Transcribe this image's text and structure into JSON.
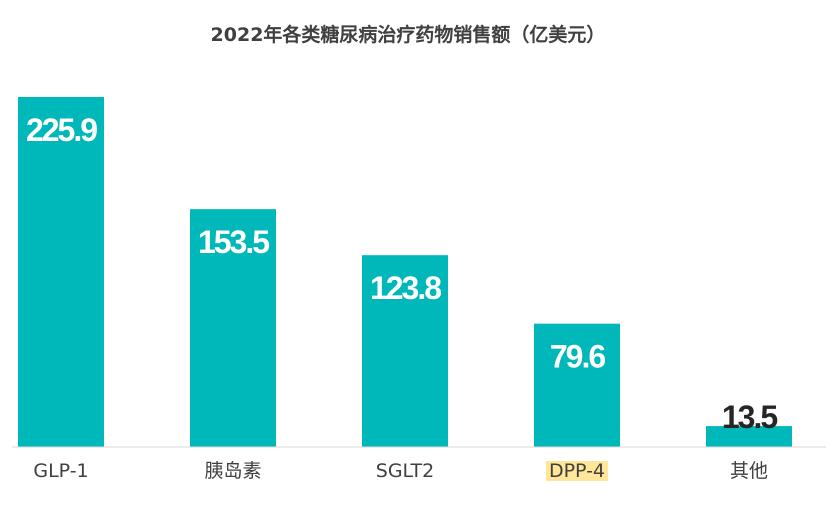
{
  "chart_data": {
    "type": "bar",
    "title": "2022年各类糖尿病治疗药物销售额（亿美元）",
    "categories": [
      "GLP-1",
      "胰岛素",
      "SGLT2",
      "DPP-4",
      "其他"
    ],
    "values": [
      225.9,
      153.5,
      123.8,
      79.6,
      13.5
    ],
    "value_labels": [
      "225.9",
      "153.5",
      "123.8",
      "79.6",
      "13.5"
    ],
    "highlighted_category": "DPP-4",
    "xlabel": "",
    "ylabel": "",
    "ylim": [
      0,
      230
    ],
    "grid": false,
    "legend": "none"
  },
  "colors": {
    "bar": "#00B8BA",
    "value_label_inside": "#ffffff",
    "value_label_outside": "#262626",
    "category_text": "#404040",
    "highlight_background": "#FFE699"
  }
}
